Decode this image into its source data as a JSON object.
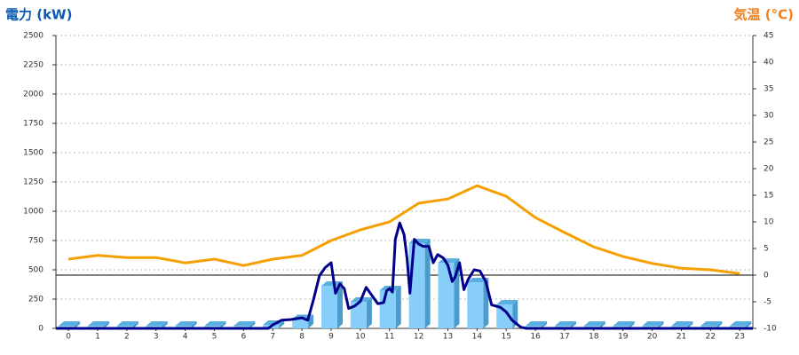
{
  "chart_data": {
    "type": "bar",
    "ylabel": "電力 (kW)",
    "y2label": "気温 (°C)",
    "ylim": [
      0,
      2500
    ],
    "yticks": [
      0,
      250,
      500,
      750,
      1000,
      1250,
      1500,
      1750,
      2000,
      2250,
      2500
    ],
    "y2lim": [
      -10,
      45
    ],
    "y2ticks": [
      -10,
      -5,
      0,
      5,
      10,
      15,
      20,
      25,
      30,
      35,
      40,
      45
    ],
    "xlim": [
      -0.43,
      23.45
    ],
    "xticks": [
      0,
      1,
      2,
      3,
      4,
      5,
      6,
      7,
      8,
      9,
      10,
      11,
      12,
      13,
      14,
      15,
      16,
      17,
      18,
      19,
      20,
      21,
      22,
      23
    ],
    "grid": true,
    "series": [
      {
        "type": "bar",
        "color": "#87cefa",
        "x": [
          0,
          1,
          2,
          3,
          4,
          5,
          6,
          7,
          8,
          9,
          10,
          11,
          12,
          13,
          14,
          15,
          16,
          17,
          18,
          19,
          20,
          21,
          22,
          23
        ],
        "values": [
          0,
          0,
          0,
          0,
          0,
          0,
          0,
          30,
          80,
          364,
          227,
          326,
          727,
          560,
          394,
          205,
          0,
          0,
          0,
          0,
          0,
          0,
          0,
          0
        ]
      },
      {
        "type": "line",
        "color": "#00008b",
        "x": [
          -0.43,
          6.85,
          7.0,
          7.3,
          7.6,
          8.0,
          8.2,
          8.4,
          8.6,
          8.8,
          9.0,
          9.15,
          9.3,
          9.45,
          9.6,
          9.8,
          10.0,
          10.2,
          10.4,
          10.6,
          10.8,
          10.9,
          11.0,
          11.1,
          11.2,
          11.35,
          11.5,
          11.6,
          11.7,
          11.85,
          12.0,
          12.15,
          12.35,
          12.5,
          12.65,
          12.85,
          13.0,
          13.15,
          13.25,
          13.4,
          13.55,
          13.7,
          13.9,
          14.1,
          14.3,
          14.5,
          14.8,
          15.0,
          15.2,
          15.5,
          15.7,
          23.45
        ],
        "values": [
          0,
          0,
          30,
          70,
          75,
          90,
          70,
          250,
          450,
          520,
          560,
          300,
          380,
          340,
          170,
          190,
          230,
          350,
          280,
          210,
          220,
          320,
          340,
          310,
          760,
          900,
          800,
          600,
          300,
          760,
          720,
          700,
          700,
          560,
          630,
          600,
          540,
          400,
          440,
          560,
          330,
          420,
          500,
          490,
          400,
          200,
          180,
          140,
          70,
          10,
          0,
          0
        ]
      },
      {
        "type": "line",
        "axis": "y2",
        "color": "#f5a000",
        "x": [
          0,
          1,
          2,
          3,
          4,
          5,
          6,
          7,
          8,
          9,
          10,
          11,
          12,
          13,
          14,
          15,
          16,
          17,
          18,
          19,
          20,
          21,
          22,
          23
        ],
        "values": [
          3,
          3.7,
          3.3,
          3.3,
          2.3,
          3,
          1.8,
          3,
          3.7,
          6.5,
          8.5,
          10,
          13.5,
          14.3,
          16.8,
          14.8,
          10.8,
          8,
          5.3,
          3.5,
          2.2,
          1.3,
          1,
          0.3
        ]
      }
    ]
  }
}
